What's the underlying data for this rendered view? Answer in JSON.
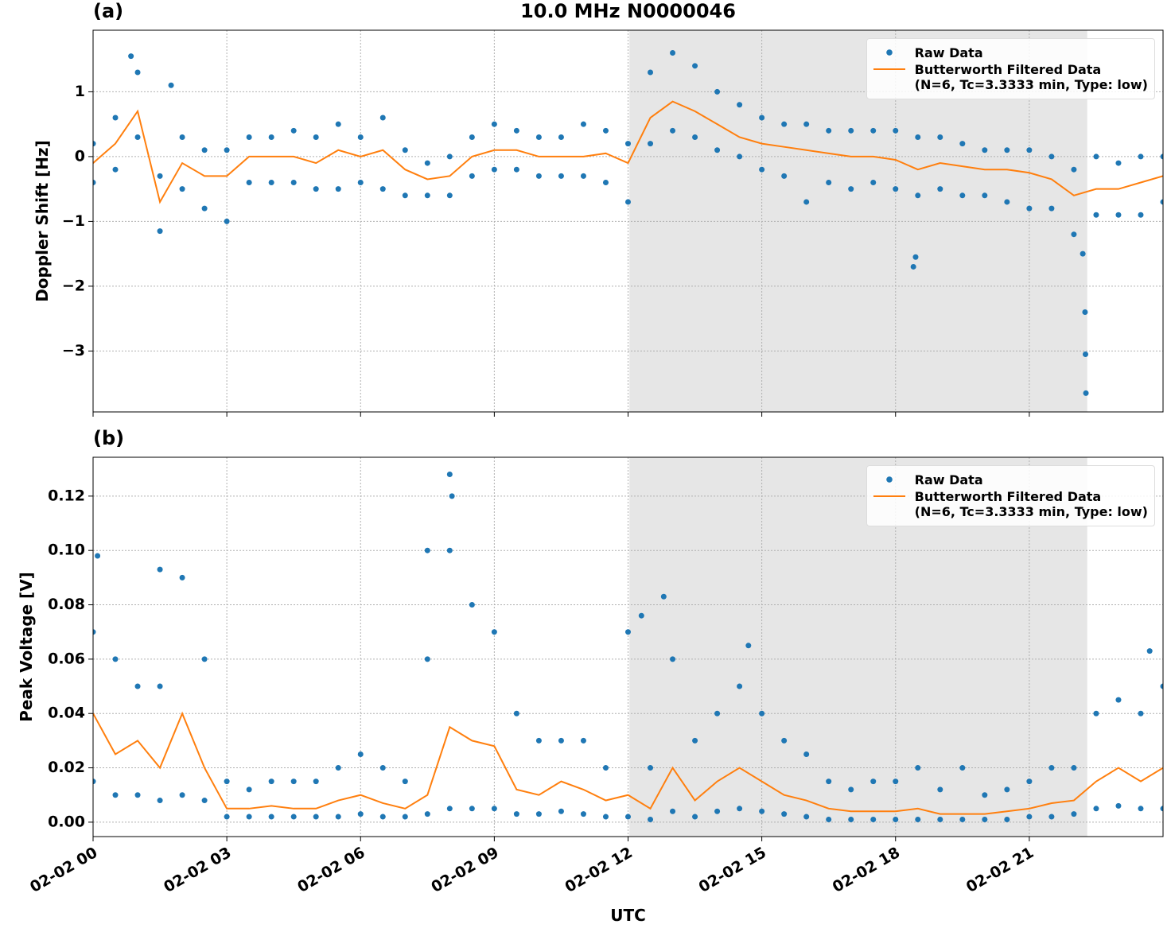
{
  "chart_data": [
    {
      "type": "line",
      "title": "10.0 MHz N0000046",
      "panel_label": "(a)",
      "ylabel": "Doppler Shift [Hz]",
      "xlim": [
        0,
        24
      ],
      "ylim": [
        -3.94,
        1.95
      ],
      "xticks": [
        {
          "value": 0,
          "label": "02-02 00"
        },
        {
          "value": 3,
          "label": "02-02 03"
        },
        {
          "value": 6,
          "label": "02-02 06"
        },
        {
          "value": 9,
          "label": "02-02 09"
        },
        {
          "value": 12,
          "label": "02-02 12"
        },
        {
          "value": 15,
          "label": "02-02 15"
        },
        {
          "value": 18,
          "label": "02-02 18"
        },
        {
          "value": 21,
          "label": "02-02 21"
        }
      ],
      "xticklabels": false,
      "yticks": [
        {
          "value": -3,
          "label": "−3"
        },
        {
          "value": -2,
          "label": "−2"
        },
        {
          "value": -1,
          "label": "−1"
        },
        0,
        1
      ],
      "grid": true,
      "shade": [
        12.03,
        22.3
      ],
      "legend": "upper right",
      "series": [
        {
          "name": "Raw Data",
          "color": "#1f77b4",
          "kind": "scatter",
          "x": [
            0,
            0.5,
            1,
            1.5,
            2,
            2.5,
            3,
            3.5,
            4,
            4.5,
            5,
            5.5,
            6,
            6.5,
            7,
            7.5,
            8,
            8.5,
            9,
            9.5,
            10,
            10.5,
            11,
            11.5,
            12,
            12.5,
            13,
            13.5,
            14,
            14.5,
            15,
            15.5,
            16,
            16.5,
            17,
            17.5,
            18,
            18.5,
            19,
            19.5,
            20,
            20.5,
            21,
            21.5,
            22,
            22.5,
            23,
            23.5,
            24,
            0,
            0.5,
            1,
            1.5,
            2,
            2.5,
            3,
            3.5,
            4,
            4.5,
            5,
            5.5,
            6,
            6.5,
            7,
            7.5,
            8,
            8.5,
            9,
            9.5,
            10,
            10.5,
            11,
            11.5,
            12,
            12.5,
            13,
            13.5,
            14,
            14.5,
            15,
            15.5,
            16,
            16.5,
            17,
            17.5,
            18,
            18.5,
            19,
            19.5,
            20,
            20.5,
            21,
            21.5,
            22,
            22.5,
            23,
            23.5,
            24,
            18.4,
            18.45,
            22.2,
            22.25,
            22.26,
            22.27,
            1.75,
            0.85
          ],
          "values": [
            0.2,
            0.6,
            1.3,
            -0.3,
            0.3,
            0.1,
            0.1,
            0.3,
            0.3,
            0.4,
            0.3,
            0.5,
            0.3,
            0.6,
            0.1,
            -0.1,
            0.0,
            0.3,
            0.5,
            0.4,
            0.3,
            0.3,
            0.5,
            0.4,
            0.2,
            1.3,
            1.6,
            1.4,
            1.0,
            0.8,
            0.6,
            0.5,
            0.5,
            0.4,
            0.4,
            0.4,
            0.4,
            0.3,
            0.3,
            0.2,
            0.1,
            0.1,
            0.1,
            0.0,
            -0.2,
            0.0,
            -0.1,
            0.0,
            0.0,
            -0.4,
            -0.2,
            0.3,
            -1.15,
            -0.5,
            -0.8,
            -1.0,
            -0.4,
            -0.4,
            -0.4,
            -0.5,
            -0.5,
            -0.4,
            -0.5,
            -0.6,
            -0.6,
            -0.6,
            -0.3,
            -0.2,
            -0.2,
            -0.3,
            -0.3,
            -0.3,
            -0.4,
            -0.7,
            0.2,
            0.4,
            0.3,
            0.1,
            0.0,
            -0.2,
            -0.3,
            -0.7,
            -0.4,
            -0.5,
            -0.4,
            -0.5,
            -0.6,
            -0.5,
            -0.6,
            -0.6,
            -0.7,
            -0.8,
            -0.8,
            -1.2,
            -0.9,
            -0.9,
            -0.9,
            -0.7,
            -1.7,
            -1.55,
            -1.5,
            -2.4,
            -3.05,
            -3.65,
            1.1,
            1.55
          ]
        },
        {
          "name": "Butterworth Filtered Data\n(N=6, Tc=3.3333 min, Type: low)",
          "color": "#ff7f0e",
          "kind": "line",
          "x": [
            0,
            0.5,
            1,
            1.5,
            2,
            2.5,
            3,
            3.5,
            4,
            4.5,
            5,
            5.5,
            6,
            6.5,
            7,
            7.5,
            8,
            8.5,
            9,
            9.5,
            10,
            10.5,
            11,
            11.5,
            12,
            12.5,
            13,
            13.5,
            14,
            14.5,
            15,
            15.5,
            16,
            16.5,
            17,
            17.5,
            18,
            18.5,
            19,
            19.5,
            20,
            20.5,
            21,
            21.5,
            22,
            22.5,
            23,
            23.5,
            24
          ],
          "values": [
            -0.1,
            0.2,
            0.7,
            -0.7,
            -0.1,
            -0.3,
            -0.3,
            0.0,
            0.0,
            0.0,
            -0.1,
            0.1,
            0.0,
            0.1,
            -0.2,
            -0.35,
            -0.3,
            0.0,
            0.1,
            0.1,
            0.0,
            0.0,
            0.0,
            0.05,
            -0.1,
            0.6,
            0.85,
            0.7,
            0.5,
            0.3,
            0.2,
            0.15,
            0.1,
            0.05,
            0.0,
            0.0,
            -0.05,
            -0.2,
            -0.1,
            -0.15,
            -0.2,
            -0.2,
            -0.25,
            -0.35,
            -0.6,
            -0.5,
            -0.5,
            -0.4,
            -0.3
          ]
        }
      ]
    },
    {
      "type": "line",
      "panel_label": "(b)",
      "ylabel": "Peak Voltage [V]",
      "xlabel": "UTC",
      "xlim": [
        0,
        24
      ],
      "ylim": [
        -0.0053,
        0.1343
      ],
      "xticks": [
        {
          "value": 0,
          "label": "02-02 00"
        },
        {
          "value": 3,
          "label": "02-02 03"
        },
        {
          "value": 6,
          "label": "02-02 06"
        },
        {
          "value": 9,
          "label": "02-02 09"
        },
        {
          "value": 12,
          "label": "02-02 12"
        },
        {
          "value": 15,
          "label": "02-02 15"
        },
        {
          "value": 18,
          "label": "02-02 18"
        },
        {
          "value": 21,
          "label": "02-02 21"
        }
      ],
      "xticklabels": true,
      "yticks": [
        {
          "value": 0,
          "label": "0.00"
        },
        {
          "value": 0.02,
          "label": "0.02"
        },
        {
          "value": 0.04,
          "label": "0.04"
        },
        {
          "value": 0.06,
          "label": "0.06"
        },
        {
          "value": 0.08,
          "label": "0.08"
        },
        {
          "value": 0.1,
          "label": "0.10"
        },
        {
          "value": 0.12,
          "label": "0.12"
        }
      ],
      "grid": true,
      "shade": [
        12.03,
        22.3
      ],
      "legend": "upper right",
      "series": [
        {
          "name": "Raw Data",
          "color": "#1f77b4",
          "kind": "scatter",
          "x": [
            0,
            0.5,
            1,
            1.5,
            2,
            2.5,
            3,
            3.5,
            4,
            4.5,
            5,
            5.5,
            6,
            6.5,
            7,
            7.5,
            8,
            8.5,
            9,
            9.5,
            10,
            10.5,
            11,
            11.5,
            12,
            12.5,
            13,
            13.5,
            14,
            14.5,
            15,
            15.5,
            16,
            16.5,
            17,
            17.5,
            18,
            18.5,
            19,
            19.5,
            20,
            20.5,
            21,
            21.5,
            22,
            22.5,
            23,
            23.5,
            24,
            0,
            0.5,
            1,
            1.5,
            2,
            2.5,
            3,
            3.5,
            4,
            4.5,
            5,
            5.5,
            6,
            6.5,
            7,
            7.5,
            8,
            8.5,
            9,
            9.5,
            10,
            10.5,
            11,
            11.5,
            12,
            12.5,
            13,
            13.5,
            14,
            14.5,
            15,
            15.5,
            16,
            16.5,
            17,
            17.5,
            18,
            18.5,
            19,
            19.5,
            20,
            20.5,
            21,
            21.5,
            22,
            22.5,
            23,
            23.5,
            24,
            8.0,
            8.05,
            7.5,
            0.1,
            1.5,
            12.8,
            12.3,
            14.7,
            23.7
          ],
          "values": [
            0.07,
            0.06,
            0.05,
            0.05,
            0.09,
            0.06,
            0.015,
            0.012,
            0.015,
            0.015,
            0.015,
            0.02,
            0.025,
            0.02,
            0.015,
            0.06,
            0.1,
            0.08,
            0.07,
            0.04,
            0.03,
            0.03,
            0.03,
            0.02,
            0.07,
            0.02,
            0.06,
            0.03,
            0.04,
            0.05,
            0.04,
            0.03,
            0.025,
            0.015,
            0.012,
            0.015,
            0.015,
            0.02,
            0.012,
            0.02,
            0.01,
            0.012,
            0.015,
            0.02,
            0.02,
            0.04,
            0.045,
            0.04,
            0.05,
            0.015,
            0.01,
            0.01,
            0.008,
            0.01,
            0.008,
            0.002,
            0.002,
            0.002,
            0.002,
            0.002,
            0.002,
            0.003,
            0.002,
            0.002,
            0.003,
            0.005,
            0.005,
            0.005,
            0.003,
            0.003,
            0.004,
            0.003,
            0.002,
            0.002,
            0.001,
            0.004,
            0.002,
            0.004,
            0.005,
            0.004,
            0.003,
            0.002,
            0.001,
            0.001,
            0.001,
            0.001,
            0.001,
            0.001,
            0.001,
            0.001,
            0.001,
            0.002,
            0.002,
            0.003,
            0.005,
            0.006,
            0.005,
            0.005,
            0.128,
            0.12,
            0.1,
            0.098,
            0.093,
            0.083,
            0.076,
            0.065,
            0.063
          ]
        },
        {
          "name": "Butterworth Filtered Data\n(N=6, Tc=3.3333 min, Type: low)",
          "color": "#ff7f0e",
          "kind": "line",
          "x": [
            0,
            0.5,
            1,
            1.5,
            2,
            2.5,
            3,
            3.5,
            4,
            4.5,
            5,
            5.5,
            6,
            6.5,
            7,
            7.5,
            8,
            8.5,
            9,
            9.5,
            10,
            10.5,
            11,
            11.5,
            12,
            12.5,
            13,
            13.5,
            14,
            14.5,
            15,
            15.5,
            16,
            16.5,
            17,
            17.5,
            18,
            18.5,
            19,
            19.5,
            20,
            20.5,
            21,
            21.5,
            22,
            22.5,
            23,
            23.5,
            24
          ],
          "values": [
            0.04,
            0.025,
            0.03,
            0.02,
            0.04,
            0.02,
            0.005,
            0.005,
            0.006,
            0.005,
            0.005,
            0.008,
            0.01,
            0.007,
            0.005,
            0.01,
            0.035,
            0.03,
            0.028,
            0.012,
            0.01,
            0.015,
            0.012,
            0.008,
            0.01,
            0.005,
            0.02,
            0.008,
            0.015,
            0.02,
            0.015,
            0.01,
            0.008,
            0.005,
            0.004,
            0.004,
            0.004,
            0.005,
            0.003,
            0.003,
            0.003,
            0.004,
            0.005,
            0.007,
            0.008,
            0.015,
            0.02,
            0.015,
            0.02
          ]
        }
      ]
    }
  ]
}
